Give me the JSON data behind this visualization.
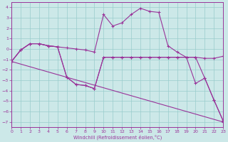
{
  "background_color": "#cce8e8",
  "grid_color": "#99cccc",
  "line_color": "#993399",
  "xlim": [
    0,
    23
  ],
  "ylim": [
    -7.5,
    4.5
  ],
  "yticks": [
    -7,
    -6,
    -5,
    -4,
    -3,
    -2,
    -1,
    0,
    1,
    2,
    3,
    4
  ],
  "xticks": [
    0,
    1,
    2,
    3,
    4,
    5,
    6,
    7,
    8,
    9,
    10,
    11,
    12,
    13,
    14,
    15,
    16,
    17,
    18,
    19,
    20,
    21,
    22,
    23
  ],
  "xlabel": "Windchill (Refroidissement éolien,°C)",
  "series": [
    {
      "x": [
        0,
        1,
        2,
        3,
        4,
        5,
        6,
        7,
        8,
        9,
        10,
        11,
        12,
        13,
        14,
        15,
        16,
        17,
        18,
        19,
        20,
        21,
        22,
        23
      ],
      "y": [
        -1.2,
        -0.1,
        0.5,
        0.5,
        0.3,
        0.2,
        0.1,
        0.0,
        -0.1,
        -0.3,
        3.3,
        2.2,
        2.5,
        3.3,
        3.9,
        3.6,
        3.5,
        0.3,
        -0.3,
        -0.8,
        -0.8,
        -0.9,
        -0.9,
        -0.7
      ]
    },
    {
      "x": [
        0,
        23
      ],
      "y": [
        -1.2,
        -7.0
      ]
    },
    {
      "x": [
        0,
        1,
        2,
        3,
        4,
        5,
        6,
        7,
        8,
        9,
        10,
        11,
        12,
        13,
        14,
        15,
        16,
        17,
        18,
        19,
        20,
        21,
        22,
        23
      ],
      "y": [
        -1.2,
        -0.1,
        0.5,
        0.5,
        0.3,
        0.2,
        -2.7,
        -3.4,
        -3.5,
        -3.8,
        -0.8,
        -0.8,
        -0.8,
        -0.8,
        -0.8,
        -0.8,
        -0.8,
        -0.8,
        -0.8,
        -0.8,
        -0.8,
        -2.8,
        -4.9,
        -6.9
      ]
    },
    {
      "x": [
        0,
        1,
        2,
        3,
        4,
        5,
        6,
        7,
        8,
        9,
        10,
        11,
        12,
        13,
        14,
        15,
        16,
        17,
        18,
        19,
        20,
        21,
        22,
        23
      ],
      "y": [
        -1.2,
        -0.1,
        0.5,
        0.5,
        0.3,
        0.2,
        -2.7,
        -3.4,
        -3.5,
        -3.8,
        -0.8,
        -0.8,
        -0.8,
        -0.8,
        -0.8,
        -0.8,
        -0.8,
        -0.8,
        -0.8,
        -0.8,
        -3.3,
        -2.8,
        -4.9,
        -6.9
      ]
    }
  ]
}
